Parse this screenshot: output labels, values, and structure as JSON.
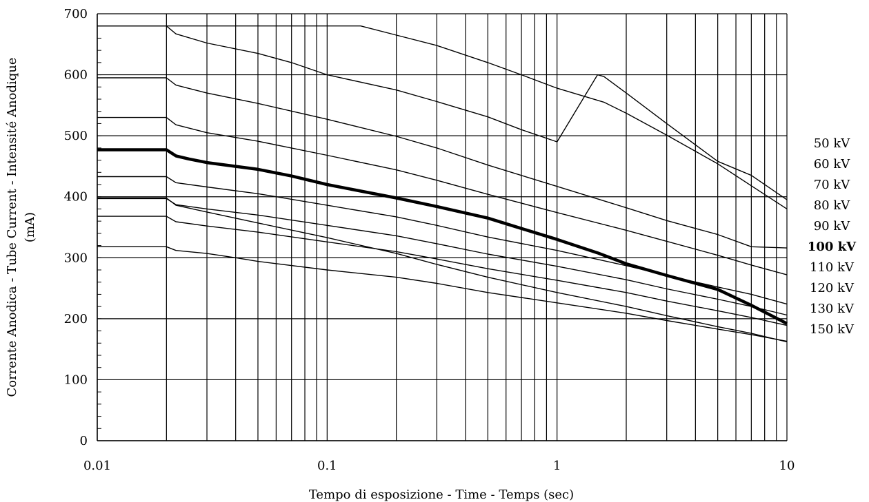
{
  "chart_data": {
    "type": "line",
    "title": "",
    "xlabel": "Tempo di esposizione - Time - Temps  (sec)",
    "ylabel_lines": [
      "Corrente Anodica - Tube Current - Intensité Anodique",
      "(mA)"
    ],
    "x_scale": "log",
    "xlim": [
      0.01,
      10
    ],
    "ylim": [
      0,
      700
    ],
    "x_ticks": [
      {
        "value": 0.01,
        "label": "0.01"
      },
      {
        "value": 0.1,
        "label": "0.1"
      },
      {
        "value": 1,
        "label": "1"
      },
      {
        "value": 10,
        "label": "10"
      }
    ],
    "y_ticks": [
      {
        "value": 0,
        "label": "0"
      },
      {
        "value": 100,
        "label": "100"
      },
      {
        "value": 200,
        "label": "200"
      },
      {
        "value": 300,
        "label": "300"
      },
      {
        "value": 400,
        "label": "400"
      },
      {
        "value": 500,
        "label": "500"
      },
      {
        "value": 600,
        "label": "600"
      },
      {
        "value": 700,
        "label": "700"
      }
    ],
    "grid": true,
    "legend_position": "right",
    "series": [
      {
        "name": "50 kV",
        "highlight": false,
        "points": [
          [
            0.01,
            680
          ],
          [
            0.14,
            680
          ],
          [
            0.2,
            665
          ],
          [
            0.3,
            648
          ],
          [
            0.5,
            620
          ],
          [
            0.7,
            600
          ],
          [
            1,
            578
          ],
          [
            1.6,
            555
          ],
          [
            2,
            537
          ],
          [
            3,
            501
          ],
          [
            5,
            454
          ],
          [
            7,
            418
          ],
          [
            10,
            380
          ]
        ]
      },
      {
        "name": "60 kV",
        "highlight": false,
        "points": [
          [
            0.01,
            680
          ],
          [
            0.02,
            680
          ],
          [
            0.022,
            667
          ],
          [
            0.03,
            652
          ],
          [
            0.05,
            635
          ],
          [
            0.07,
            620
          ],
          [
            0.1,
            600
          ],
          [
            0.2,
            575
          ],
          [
            0.3,
            556
          ],
          [
            0.5,
            531
          ],
          [
            0.7,
            510
          ],
          [
            1,
            490
          ],
          [
            1.5,
            600
          ],
          [
            1.6,
            597
          ],
          [
            2,
            570
          ],
          [
            3,
            520
          ],
          [
            5,
            458
          ],
          [
            7,
            435
          ],
          [
            10,
            395
          ]
        ]
      },
      {
        "name": "70 kV",
        "highlight": false,
        "points": [
          [
            0.01,
            595
          ],
          [
            0.02,
            595
          ],
          [
            0.022,
            583
          ],
          [
            0.03,
            570
          ],
          [
            0.05,
            553
          ],
          [
            0.1,
            527
          ],
          [
            0.2,
            499
          ],
          [
            0.3,
            480
          ],
          [
            0.5,
            452
          ],
          [
            1,
            417
          ],
          [
            2,
            382
          ],
          [
            3,
            361
          ],
          [
            5,
            338
          ],
          [
            7,
            318
          ],
          [
            10,
            316
          ]
        ]
      },
      {
        "name": "80 kV",
        "highlight": false,
        "points": [
          [
            0.01,
            530
          ],
          [
            0.02,
            530
          ],
          [
            0.022,
            518
          ],
          [
            0.03,
            505
          ],
          [
            0.05,
            491
          ],
          [
            0.1,
            468
          ],
          [
            0.2,
            444
          ],
          [
            0.3,
            427
          ],
          [
            0.5,
            404
          ],
          [
            1,
            374
          ],
          [
            2,
            345
          ],
          [
            3,
            327
          ],
          [
            5,
            304
          ],
          [
            7,
            288
          ],
          [
            10,
            272
          ]
        ]
      },
      {
        "name": "90 kV",
        "highlight": false,
        "points": [
          [
            0.01,
            433
          ],
          [
            0.02,
            433
          ],
          [
            0.022,
            423
          ],
          [
            0.03,
            416
          ],
          [
            0.05,
            405
          ],
          [
            0.1,
            386
          ],
          [
            0.2,
            367
          ],
          [
            0.3,
            353
          ],
          [
            0.5,
            334
          ],
          [
            1,
            312
          ],
          [
            2,
            287
          ],
          [
            3,
            271
          ],
          [
            5,
            252
          ],
          [
            7,
            240
          ],
          [
            10,
            224
          ]
        ]
      },
      {
        "name": "100 kV",
        "highlight": true,
        "points": [
          [
            0.01,
            477
          ],
          [
            0.02,
            477
          ],
          [
            0.022,
            467
          ],
          [
            0.025,
            462
          ],
          [
            0.03,
            456
          ],
          [
            0.05,
            445
          ],
          [
            0.07,
            434
          ],
          [
            0.1,
            420
          ],
          [
            0.2,
            398
          ],
          [
            0.3,
            384
          ],
          [
            0.5,
            365
          ],
          [
            0.7,
            348
          ],
          [
            1,
            330
          ],
          [
            1.5,
            308
          ],
          [
            2,
            290
          ],
          [
            3,
            271
          ],
          [
            5,
            248
          ],
          [
            7,
            222
          ],
          [
            10,
            192
          ]
        ]
      },
      {
        "name": "110 kV",
        "highlight": false,
        "points": [
          [
            0.01,
            397
          ],
          [
            0.02,
            397
          ],
          [
            0.022,
            387
          ],
          [
            0.03,
            380
          ],
          [
            0.05,
            370
          ],
          [
            0.1,
            353
          ],
          [
            0.2,
            336
          ],
          [
            0.3,
            323
          ],
          [
            0.5,
            306
          ],
          [
            1,
            286
          ],
          [
            2,
            264
          ],
          [
            3,
            249
          ],
          [
            5,
            232
          ],
          [
            7,
            220
          ],
          [
            10,
            206
          ]
        ]
      },
      {
        "name": "120 kV",
        "highlight": false,
        "points": [
          [
            0.01,
            368
          ],
          [
            0.02,
            368
          ],
          [
            0.022,
            359
          ],
          [
            0.03,
            352
          ],
          [
            0.05,
            342
          ],
          [
            0.1,
            326
          ],
          [
            0.2,
            310
          ],
          [
            0.3,
            298
          ],
          [
            0.5,
            282
          ],
          [
            1,
            263
          ],
          [
            2,
            243
          ],
          [
            3,
            229
          ],
          [
            5,
            213
          ],
          [
            7,
            202
          ],
          [
            10,
            189
          ]
        ]
      },
      {
        "name": "130 kV",
        "highlight": false,
        "points": [
          [
            0.01,
            318
          ],
          [
            0.02,
            318
          ],
          [
            0.022,
            312
          ],
          [
            0.03,
            307
          ],
          [
            0.04,
            300
          ],
          [
            0.05,
            294
          ],
          [
            0.1,
            280
          ],
          [
            0.2,
            268
          ],
          [
            0.3,
            258
          ],
          [
            0.5,
            243
          ],
          [
            1,
            226
          ],
          [
            2,
            209
          ],
          [
            3,
            197
          ],
          [
            5,
            183
          ],
          [
            7,
            174
          ],
          [
            10,
            163
          ]
        ]
      },
      {
        "name": "150 kV",
        "highlight": false,
        "points": [
          [
            0.01,
            398
          ],
          [
            0.02,
            398
          ],
          [
            0.022,
            386
          ],
          [
            0.03,
            375
          ],
          [
            0.05,
            357
          ],
          [
            0.1,
            333
          ],
          [
            0.2,
            307
          ],
          [
            0.3,
            289
          ],
          [
            0.5,
            268
          ],
          [
            1,
            243
          ],
          [
            2,
            220
          ],
          [
            3,
            205
          ],
          [
            5,
            187
          ],
          [
            7,
            176
          ],
          [
            10,
            162
          ]
        ]
      }
    ]
  }
}
